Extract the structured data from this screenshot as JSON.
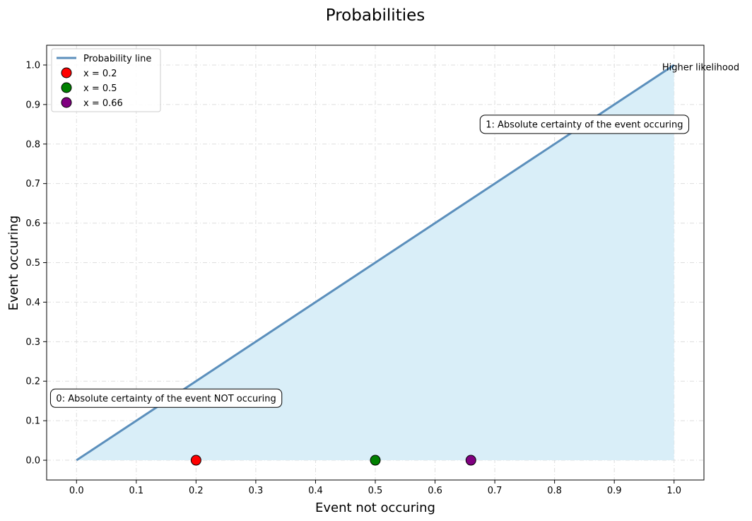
{
  "chart_data": {
    "type": "line",
    "title": "Probabilities",
    "xlabel": "Event not occuring",
    "ylabel": "Event occuring",
    "xlim": [
      -0.05,
      1.05
    ],
    "ylim": [
      -0.05,
      1.05
    ],
    "xticks": [
      0.0,
      0.1,
      0.2,
      0.3,
      0.4,
      0.5,
      0.6,
      0.7,
      0.8,
      0.9,
      1.0
    ],
    "yticks": [
      0.0,
      0.1,
      0.2,
      0.3,
      0.4,
      0.5,
      0.6,
      0.7,
      0.8,
      0.9,
      1.0
    ],
    "xtick_labels": [
      "0.0",
      "0.1",
      "0.2",
      "0.3",
      "0.4",
      "0.5",
      "0.6",
      "0.7",
      "0.8",
      "0.9",
      "1.0"
    ],
    "ytick_labels": [
      "0.0",
      "0.1",
      "0.2",
      "0.3",
      "0.4",
      "0.5",
      "0.6",
      "0.7",
      "0.8",
      "0.9",
      "1.0"
    ],
    "grid": true,
    "legend_position": "top-left",
    "line": {
      "name": "Probability line",
      "x": [
        0.0,
        1.0
      ],
      "y": [
        0.0,
        1.0
      ],
      "color": "#5b8fbc",
      "fill_color": "#d9eef8"
    },
    "points": [
      {
        "name": "x = 0.2",
        "x": 0.2,
        "y": 0.0,
        "color": "#ff0000"
      },
      {
        "name": "x = 0.5",
        "x": 0.5,
        "y": 0.0,
        "color": "#008000"
      },
      {
        "name": "x = 0.66",
        "x": 0.66,
        "y": 0.0,
        "color": "#800080"
      }
    ],
    "annotations": [
      {
        "text": "1: Absolute certainty of the event occuring",
        "x": 0.85,
        "y": 0.85,
        "boxed": true
      },
      {
        "text": "0: Absolute certainty of the event NOT occuring",
        "x": 0.15,
        "y": 0.157,
        "boxed": true
      },
      {
        "text": "Higher likelihood",
        "x": 0.98,
        "y": 0.995,
        "boxed": false
      }
    ]
  }
}
